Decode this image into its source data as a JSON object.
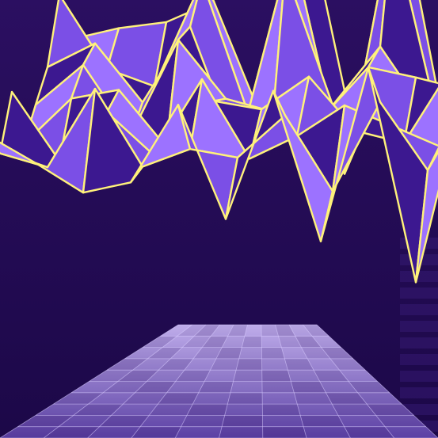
{
  "scene": {
    "subject": "3d-wireframe-surface-illustration",
    "colors": {
      "background_top": "#2a0f5e",
      "background_bottom": "#1d0a4a",
      "surface_light": "#9c72ff",
      "surface_mid": "#7b4fe6",
      "surface_dark": "#3c1890",
      "wire": "#fff27a",
      "floor_light": "#b9a4ee",
      "floor_dark": "#6e52b8"
    },
    "icons": [
      "wave-surface-icon",
      "floor-grid-icon",
      "side-bars-icon"
    ]
  }
}
